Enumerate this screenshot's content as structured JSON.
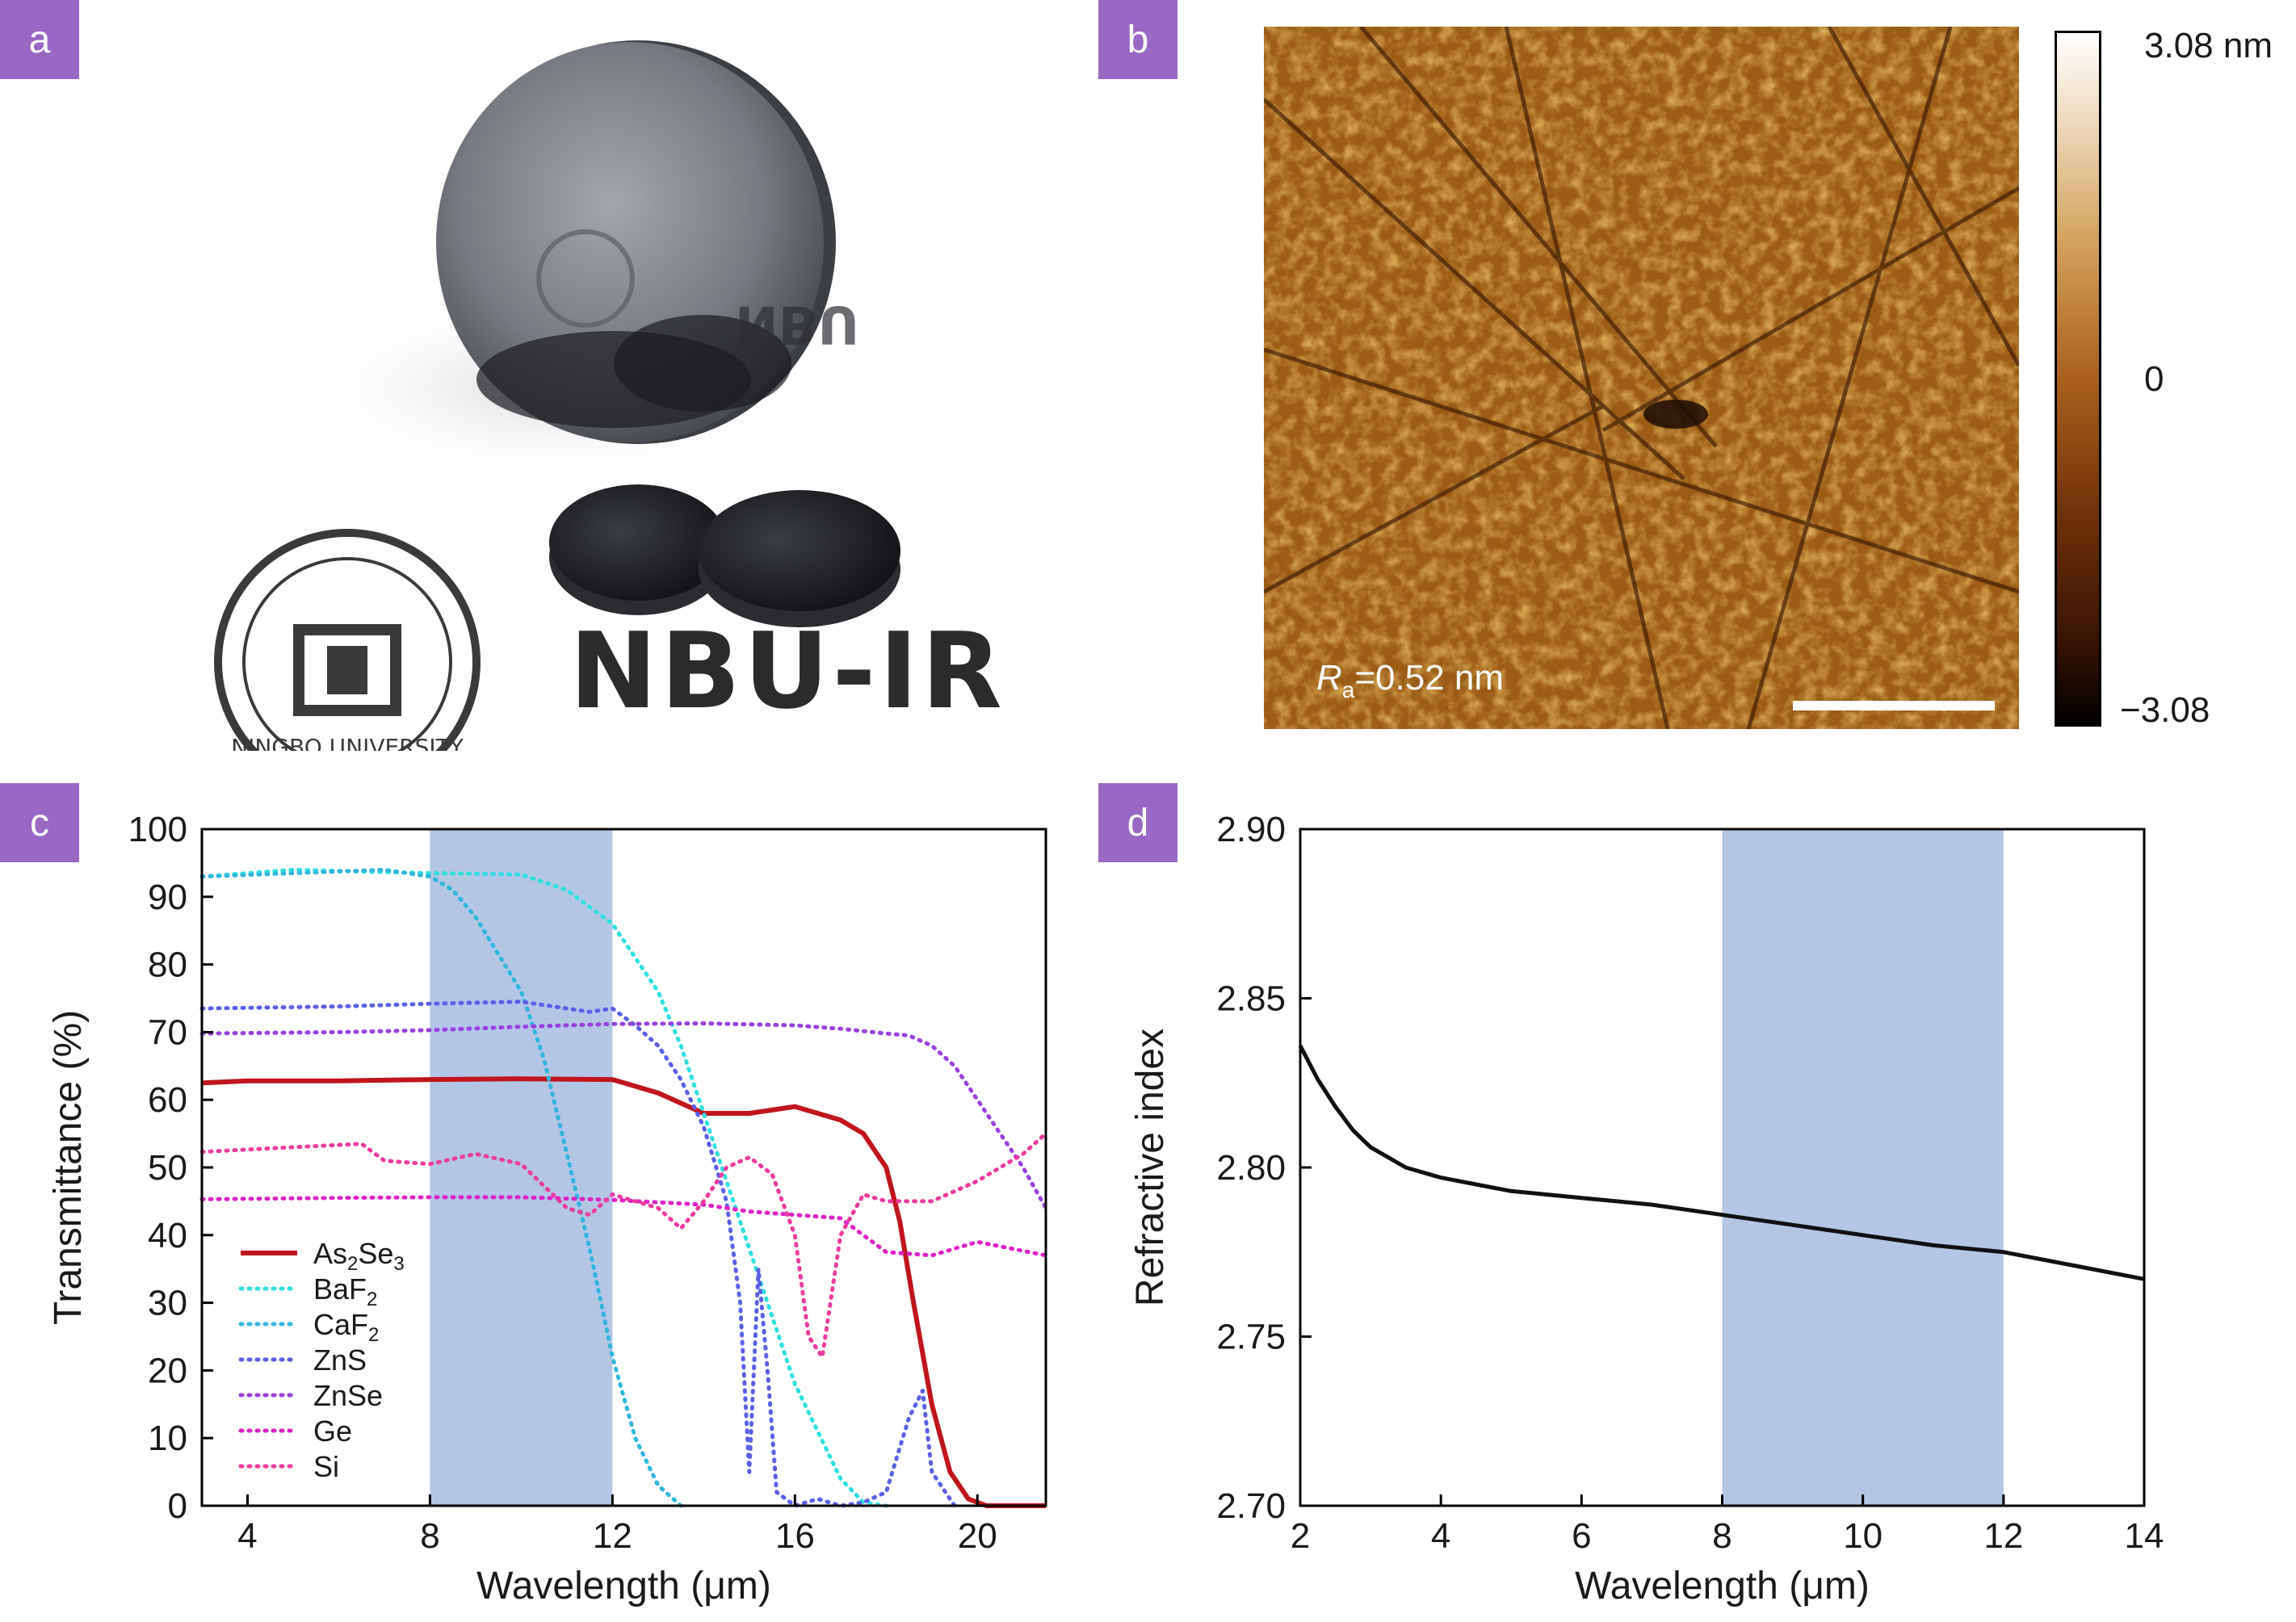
{
  "panels": {
    "a": {
      "label": "a"
    },
    "b": {
      "label": "b"
    },
    "c": {
      "label": "c"
    },
    "d": {
      "label": "d"
    }
  },
  "photo": {
    "logo_text": "NBU-IR",
    "seal_text": "NINGBO UNIVERSITY"
  },
  "afm": {
    "ra_symbol": "R",
    "ra_sub": "a",
    "ra_value": "=0.52 nm",
    "colorbar_top": "3.08 nm",
    "colorbar_mid": "0",
    "colorbar_bottom": "−3.08"
  },
  "chart_data": [
    {
      "type": "line",
      "xlabel": "Wavelength (μm)",
      "ylabel": "Transmittance (%)",
      "xlim": [
        3,
        21.5
      ],
      "ylim": [
        0,
        100
      ],
      "xticks": [
        4,
        8,
        12,
        16,
        20
      ],
      "yticks": [
        0,
        10,
        20,
        30,
        40,
        50,
        60,
        70,
        80,
        90,
        100
      ],
      "highlight_band": [
        8,
        12
      ],
      "legend_position": "lower-left",
      "series": [
        {
          "name": "As2Se3",
          "legend_main": "As",
          "legend_sub1": "2",
          "legend_mid": "Se",
          "legend_sub2": "3",
          "color": "#c0161b",
          "style": "solid",
          "x": [
            3,
            4,
            6,
            8,
            10,
            12,
            13,
            14,
            15,
            16,
            17,
            17.5,
            18,
            18.3,
            18.6,
            19,
            19.4,
            19.8,
            20.2,
            21.5
          ],
          "y": [
            62.5,
            62.8,
            62.8,
            63,
            63.1,
            63,
            61,
            58,
            58,
            59,
            57,
            55,
            50,
            42,
            30,
            15,
            5,
            1,
            0,
            0
          ]
        },
        {
          "name": "BaF2",
          "legend_main": "BaF",
          "legend_sub1": "2",
          "legend_mid": "",
          "legend_sub2": "",
          "color": "#2de0e0",
          "style": "dotted",
          "x": [
            3,
            5,
            8,
            10,
            11,
            12,
            13,
            13.5,
            14,
            15,
            16,
            17,
            17.5,
            18
          ],
          "y": [
            93,
            94,
            93.5,
            93.3,
            91,
            86,
            76,
            68,
            58,
            38,
            18,
            4,
            0.5,
            0
          ]
        },
        {
          "name": "CaF2",
          "legend_main": "CaF",
          "legend_sub1": "2",
          "legend_mid": "",
          "legend_sub2": "",
          "color": "#2fb6dd",
          "style": "dotted",
          "x": [
            3,
            5,
            7,
            8,
            8.5,
            9,
            10,
            10.5,
            11,
            11.5,
            12,
            12.5,
            13,
            13.5
          ],
          "y": [
            93,
            93.5,
            94,
            93,
            91,
            87,
            76,
            66,
            52,
            38,
            22,
            10,
            3,
            0
          ]
        },
        {
          "name": "ZnS",
          "legend_main": "ZnS",
          "legend_sub1": "",
          "legend_mid": "",
          "legend_sub2": "",
          "color": "#5a5fe6",
          "style": "dotted",
          "x": [
            3,
            6,
            8,
            10,
            11,
            11.5,
            12,
            12.5,
            13,
            13.5,
            14,
            14.5,
            14.8,
            15,
            15.2,
            15.4,
            15.6,
            16,
            16.5,
            17,
            17.5,
            18,
            18.5,
            18.8,
            19,
            19.5
          ],
          "y": [
            73.5,
            73.8,
            74.2,
            74.5,
            73.5,
            73,
            73.5,
            71,
            68,
            63,
            56,
            45,
            30,
            5,
            35,
            20,
            2,
            0,
            1,
            0,
            0.5,
            2,
            13,
            17,
            5,
            0
          ]
        },
        {
          "name": "ZnSe",
          "legend_main": "ZnSe",
          "legend_sub1": "",
          "legend_mid": "",
          "legend_sub2": "",
          "color": "#9b3fe0",
          "style": "dotted",
          "x": [
            3,
            6,
            8,
            10,
            12,
            14,
            16,
            17,
            18,
            18.5,
            19,
            19.5,
            20,
            20.5,
            21,
            21.5
          ],
          "y": [
            69.8,
            70,
            70.3,
            70.8,
            71.2,
            71.3,
            71,
            70.5,
            69.8,
            69.5,
            68,
            65,
            60,
            55,
            50,
            44
          ]
        },
        {
          "name": "Ge",
          "legend_main": "Ge",
          "legend_sub1": "",
          "legend_mid": "",
          "legend_sub2": "",
          "color": "#e020c8",
          "style": "dotted",
          "x": [
            3,
            6,
            8,
            10,
            12,
            14,
            15,
            16,
            17,
            18,
            19,
            20,
            21.5
          ],
          "y": [
            45.3,
            45.5,
            45.6,
            45.6,
            45.2,
            44.5,
            43.5,
            43,
            42.5,
            37.5,
            37,
            39,
            37
          ]
        },
        {
          "name": "Si",
          "legend_main": "Si",
          "legend_sub1": "",
          "legend_mid": "",
          "legend_sub2": "",
          "color": "#ee3aa0",
          "style": "dotted",
          "x": [
            3,
            5,
            6.5,
            7,
            8,
            9,
            10,
            11,
            11.5,
            12,
            13,
            13.5,
            14,
            14.5,
            15,
            15.5,
            16,
            16.3,
            16.6,
            17,
            17.5,
            18,
            19,
            20,
            21,
            21.5
          ],
          "y": [
            52.3,
            53,
            53.5,
            51,
            50.5,
            52,
            50.5,
            44,
            43,
            46,
            44,
            41,
            45,
            50,
            51.5,
            49,
            40,
            25,
            22,
            40,
            46,
            45,
            45,
            48,
            52,
            55
          ]
        }
      ]
    },
    {
      "type": "line",
      "xlabel": "Wavelength (μm)",
      "ylabel": "Refractive index",
      "xlim": [
        2,
        14
      ],
      "ylim": [
        2.7,
        2.9
      ],
      "xticks": [
        2,
        4,
        6,
        8,
        10,
        12,
        14
      ],
      "yticks": [
        2.7,
        2.75,
        2.8,
        2.85,
        2.9
      ],
      "highlight_band": [
        8,
        12
      ],
      "series": [
        {
          "color": "#111111",
          "style": "solid",
          "x": [
            2,
            2.25,
            2.5,
            2.75,
            3,
            3.5,
            4,
            4.5,
            5,
            6,
            7,
            8,
            9,
            10,
            11,
            12,
            13,
            14
          ],
          "y": [
            2.836,
            2.826,
            2.818,
            2.811,
            2.806,
            2.8,
            2.797,
            2.795,
            2.793,
            2.791,
            2.789,
            2.786,
            2.783,
            2.78,
            2.777,
            2.775,
            2.771,
            2.767
          ]
        }
      ]
    }
  ]
}
